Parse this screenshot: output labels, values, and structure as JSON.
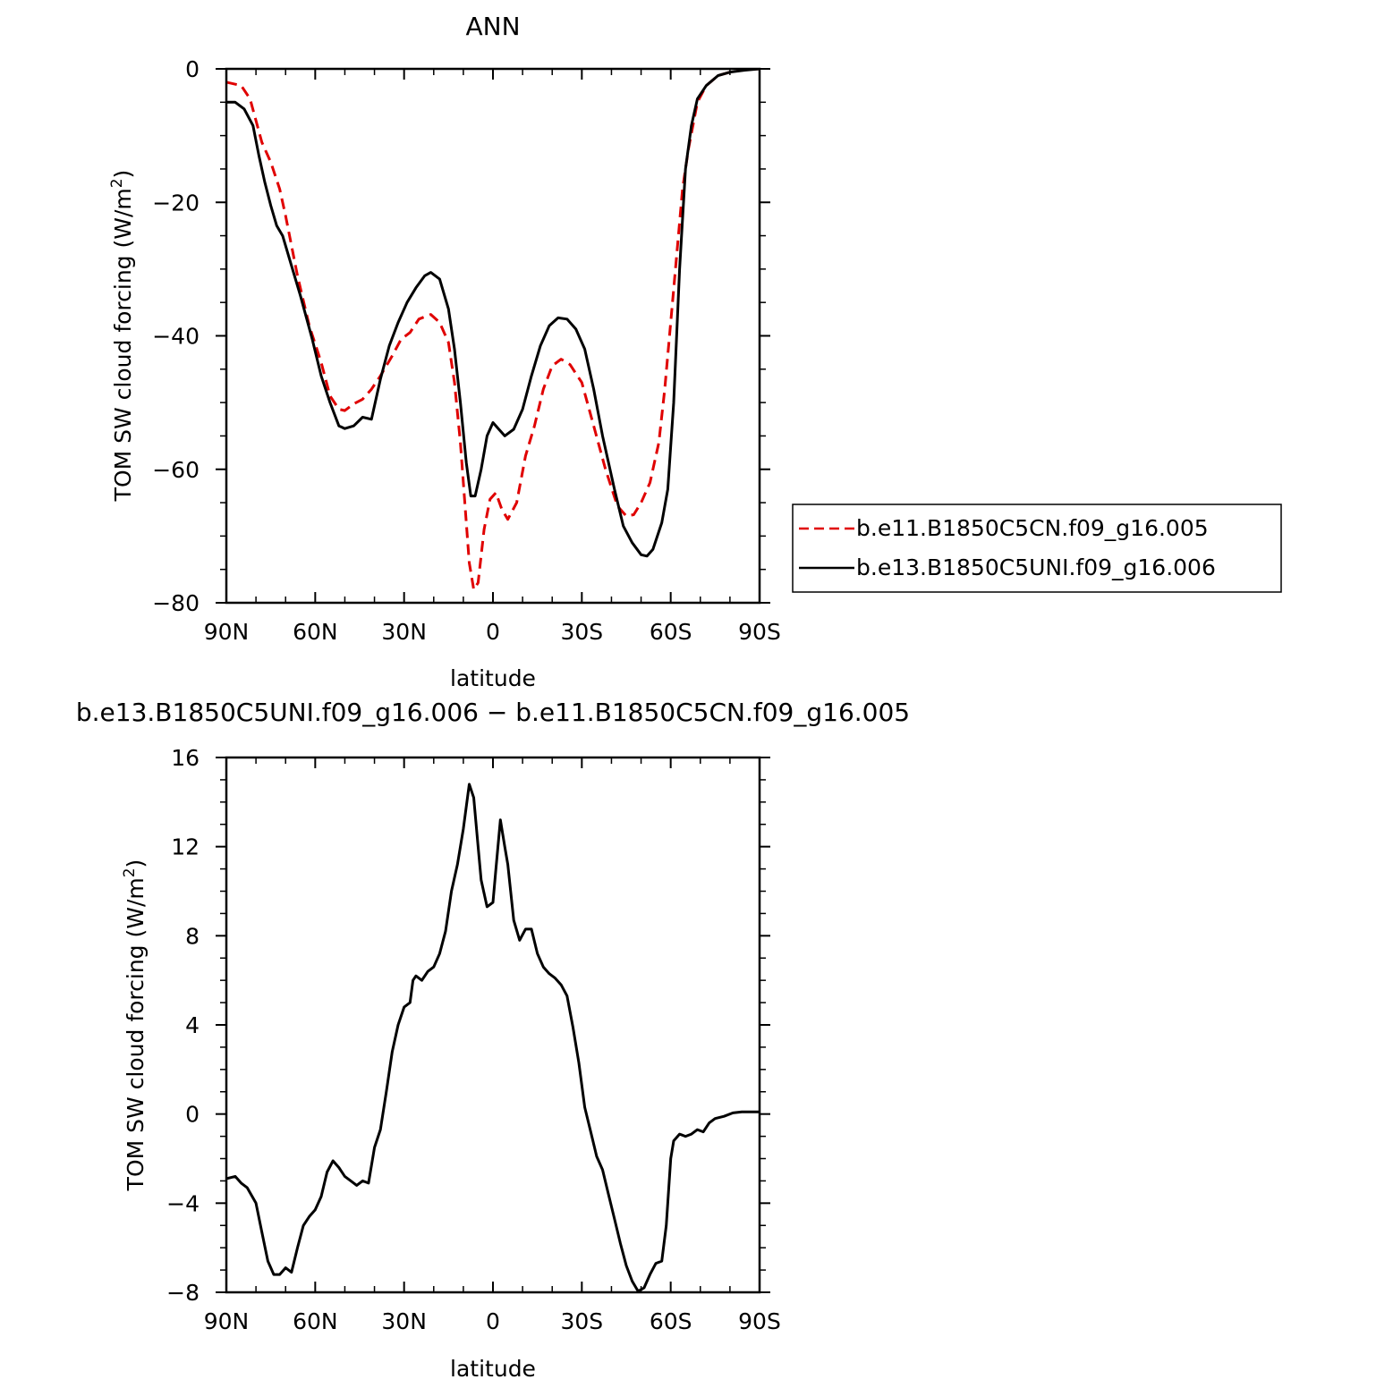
{
  "chart_data": [
    {
      "type": "line",
      "title": "ANN",
      "xlabel": "latitude",
      "ylabel": "TOM SW cloud forcing (W/m²)",
      "ylabel_main": "TOM SW cloud forcing (W/m",
      "ylabel_sup": "2",
      "ylabel_close": ")",
      "xlim": [
        90,
        -90
      ],
      "ylim": [
        -80,
        0
      ],
      "xticks": [
        90,
        60,
        30,
        0,
        -30,
        -60,
        -90
      ],
      "xtick_labels": [
        "90N",
        "60N",
        "30N",
        "0",
        "30S",
        "60S",
        "90S"
      ],
      "yticks": [
        0,
        -20,
        -40,
        -60,
        -80
      ],
      "ytick_labels": [
        "0",
        "−20",
        "−40",
        "−60",
        "−80"
      ],
      "legend_position": "outside-right",
      "series": [
        {
          "name": "b.e11.B1850C5CN.f09_g16.005",
          "color": "#e00000",
          "dash": "dashed",
          "points": [
            [
              90,
              -2
            ],
            [
              85,
              -2.5
            ],
            [
              82,
              -4.5
            ],
            [
              78,
              -11
            ],
            [
              75,
              -14
            ],
            [
              72,
              -18
            ],
            [
              70,
              -22
            ],
            [
              66,
              -31
            ],
            [
              62,
              -38.5
            ],
            [
              58,
              -44
            ],
            [
              55,
              -49
            ],
            [
              52,
              -51
            ],
            [
              50,
              -51.2
            ],
            [
              47,
              -50.2
            ],
            [
              44,
              -49.5
            ],
            [
              41,
              -48
            ],
            [
              38,
              -46
            ],
            [
              34,
              -43
            ],
            [
              31,
              -40.5
            ],
            [
              28,
              -39.5
            ],
            [
              25,
              -37.5
            ],
            [
              21,
              -36.8
            ],
            [
              18,
              -38
            ],
            [
              15,
              -41
            ],
            [
              13,
              -47
            ],
            [
              11,
              -56
            ],
            [
              9,
              -68
            ],
            [
              8,
              -74
            ],
            [
              6.5,
              -78
            ],
            [
              5,
              -77
            ],
            [
              3,
              -69
            ],
            [
              1,
              -64.5
            ],
            [
              -1,
              -63.5
            ],
            [
              -3,
              -66
            ],
            [
              -5,
              -67.5
            ],
            [
              -8,
              -65
            ],
            [
              -11,
              -58
            ],
            [
              -14,
              -53.5
            ],
            [
              -17,
              -48
            ],
            [
              -20,
              -44.5
            ],
            [
              -23,
              -43.5
            ],
            [
              -26,
              -44.3
            ],
            [
              -30,
              -47
            ],
            [
              -34,
              -53.5
            ],
            [
              -38,
              -60
            ],
            [
              -42,
              -65.5
            ],
            [
              -45,
              -67
            ],
            [
              -47.5,
              -66.8
            ],
            [
              -50,
              -65
            ],
            [
              -53,
              -62
            ],
            [
              -56,
              -56
            ],
            [
              -58,
              -48
            ],
            [
              -61,
              -33
            ],
            [
              -64,
              -18
            ],
            [
              -66,
              -12
            ],
            [
              -69,
              -5
            ],
            [
              -72,
              -2.5
            ],
            [
              -76,
              -1
            ],
            [
              -80,
              -0.5
            ],
            [
              -85,
              -0.1
            ],
            [
              -90,
              0
            ]
          ]
        },
        {
          "name": "b.e13.B1850C5UNI.f09_g16.006",
          "color": "#000000",
          "dash": "solid",
          "points": [
            [
              90,
              -5
            ],
            [
              87,
              -5
            ],
            [
              84,
              -6
            ],
            [
              81,
              -8.5
            ],
            [
              79,
              -13
            ],
            [
              77,
              -17
            ],
            [
              75,
              -20.5
            ],
            [
              73,
              -23.5
            ],
            [
              71,
              -25
            ],
            [
              68,
              -29.5
            ],
            [
              65,
              -34
            ],
            [
              61,
              -40.5
            ],
            [
              58,
              -46
            ],
            [
              55,
              -50
            ],
            [
              52,
              -53.5
            ],
            [
              50,
              -53.9
            ],
            [
              47,
              -53.5
            ],
            [
              44,
              -52.2
            ],
            [
              41,
              -52.5
            ],
            [
              38,
              -46.5
            ],
            [
              35,
              -41.5
            ],
            [
              32,
              -38
            ],
            [
              29,
              -35
            ],
            [
              26,
              -32.8
            ],
            [
              23,
              -31
            ],
            [
              21,
              -30.5
            ],
            [
              18,
              -31.5
            ],
            [
              15,
              -36
            ],
            [
              13,
              -42
            ],
            [
              11,
              -50
            ],
            [
              9,
              -59
            ],
            [
              7.5,
              -64
            ],
            [
              6,
              -64
            ],
            [
              4,
              -60
            ],
            [
              2,
              -55
            ],
            [
              0,
              -53
            ],
            [
              -2,
              -54
            ],
            [
              -4,
              -55
            ],
            [
              -7,
              -54
            ],
            [
              -10,
              -51
            ],
            [
              -13,
              -46
            ],
            [
              -16,
              -41.5
            ],
            [
              -19,
              -38.5
            ],
            [
              -22,
              -37.3
            ],
            [
              -25,
              -37.5
            ],
            [
              -28,
              -39
            ],
            [
              -31,
              -42
            ],
            [
              -34,
              -48
            ],
            [
              -37,
              -55
            ],
            [
              -41,
              -63
            ],
            [
              -44,
              -68.5
            ],
            [
              -47,
              -71
            ],
            [
              -50,
              -72.8
            ],
            [
              -52,
              -73
            ],
            [
              -54,
              -72
            ],
            [
              -57,
              -68
            ],
            [
              -59,
              -63
            ],
            [
              -61,
              -50
            ],
            [
              -63,
              -30
            ],
            [
              -65,
              -15
            ],
            [
              -67,
              -8.5
            ],
            [
              -69,
              -4.5
            ],
            [
              -72,
              -2.5
            ],
            [
              -76,
              -1
            ],
            [
              -80,
              -0.5
            ],
            [
              -85,
              -0.2
            ],
            [
              -90,
              0
            ]
          ]
        }
      ]
    },
    {
      "type": "line",
      "title": "b.e13.B1850C5UNI.f09_g16.006 − b.e11.B1850C5CN.f09_g16.005",
      "xlabel": "latitude",
      "ylabel": "TOM SW cloud forcing (W/m²)",
      "ylabel_main": "TOM SW cloud forcing (W/m",
      "ylabel_sup": "2",
      "ylabel_close": ")",
      "xlim": [
        90,
        -90
      ],
      "ylim": [
        -8,
        16
      ],
      "xticks": [
        90,
        60,
        30,
        0,
        -30,
        -60,
        -90
      ],
      "xtick_labels": [
        "90N",
        "60N",
        "30N",
        "0",
        "30S",
        "60S",
        "90S"
      ],
      "yticks": [
        16,
        12,
        8,
        4,
        0,
        -4,
        -8
      ],
      "ytick_labels": [
        "16",
        "12",
        "8",
        "4",
        "0",
        "−4",
        "−8"
      ],
      "series": [
        {
          "color": "#000000",
          "dash": "solid",
          "points": [
            [
              90,
              -2.9
            ],
            [
              87,
              -2.8
            ],
            [
              85,
              -3.1
            ],
            [
              83,
              -3.3
            ],
            [
              80,
              -4
            ],
            [
              78,
              -5.3
            ],
            [
              76,
              -6.6
            ],
            [
              74,
              -7.2
            ],
            [
              72,
              -7.2
            ],
            [
              70,
              -6.9
            ],
            [
              68,
              -7.1
            ],
            [
              66,
              -6
            ],
            [
              64,
              -5
            ],
            [
              62,
              -4.6
            ],
            [
              60,
              -4.3
            ],
            [
              58,
              -3.7
            ],
            [
              56,
              -2.6
            ],
            [
              54,
              -2.1
            ],
            [
              52,
              -2.4
            ],
            [
              50,
              -2.8
            ],
            [
              48,
              -3
            ],
            [
              46,
              -3.2
            ],
            [
              44,
              -3
            ],
            [
              42,
              -3.1
            ],
            [
              40,
              -1.5
            ],
            [
              38,
              -0.7
            ],
            [
              36,
              1
            ],
            [
              34,
              2.8
            ],
            [
              32,
              4
            ],
            [
              30,
              4.8
            ],
            [
              28,
              5
            ],
            [
              27,
              6
            ],
            [
              26,
              6.2
            ],
            [
              24,
              6
            ],
            [
              22,
              6.4
            ],
            [
              20,
              6.6
            ],
            [
              18,
              7.2
            ],
            [
              16,
              8.2
            ],
            [
              14,
              10
            ],
            [
              12,
              11.2
            ],
            [
              10,
              12.8
            ],
            [
              8,
              14.8
            ],
            [
              6.5,
              14.2
            ],
            [
              5,
              12
            ],
            [
              4,
              10.5
            ],
            [
              2,
              9.3
            ],
            [
              0,
              9.5
            ],
            [
              -1,
              11
            ],
            [
              -2.5,
              13.2
            ],
            [
              -4,
              12
            ],
            [
              -5,
              11.2
            ],
            [
              -7,
              8.7
            ],
            [
              -9,
              7.8
            ],
            [
              -11,
              8.3
            ],
            [
              -13,
              8.3
            ],
            [
              -15,
              7.2
            ],
            [
              -17,
              6.6
            ],
            [
              -19,
              6.3
            ],
            [
              -21,
              6.1
            ],
            [
              -23,
              5.8
            ],
            [
              -25,
              5.3
            ],
            [
              -27,
              3.9
            ],
            [
              -29,
              2.3
            ],
            [
              -31,
              0.3
            ],
            [
              -33,
              -0.8
            ],
            [
              -35,
              -1.9
            ],
            [
              -37,
              -2.5
            ],
            [
              -39,
              -3.6
            ],
            [
              -41,
              -4.7
            ],
            [
              -43,
              -5.8
            ],
            [
              -45,
              -6.8
            ],
            [
              -47,
              -7.5
            ],
            [
              -49,
              -7.95
            ],
            [
              -51,
              -7.8
            ],
            [
              -53,
              -7.2
            ],
            [
              -55,
              -6.7
            ],
            [
              -57,
              -6.6
            ],
            [
              -58.5,
              -5
            ],
            [
              -60,
              -2
            ],
            [
              -61,
              -1.2
            ],
            [
              -63,
              -0.9
            ],
            [
              -65,
              -1
            ],
            [
              -67,
              -0.9
            ],
            [
              -69,
              -0.7
            ],
            [
              -71,
              -0.8
            ],
            [
              -73,
              -0.4
            ],
            [
              -75,
              -0.2
            ],
            [
              -78,
              -0.1
            ],
            [
              -81,
              0.05
            ],
            [
              -84,
              0.1
            ],
            [
              -87,
              0.1
            ],
            [
              -90,
              0.1
            ]
          ]
        }
      ]
    }
  ]
}
